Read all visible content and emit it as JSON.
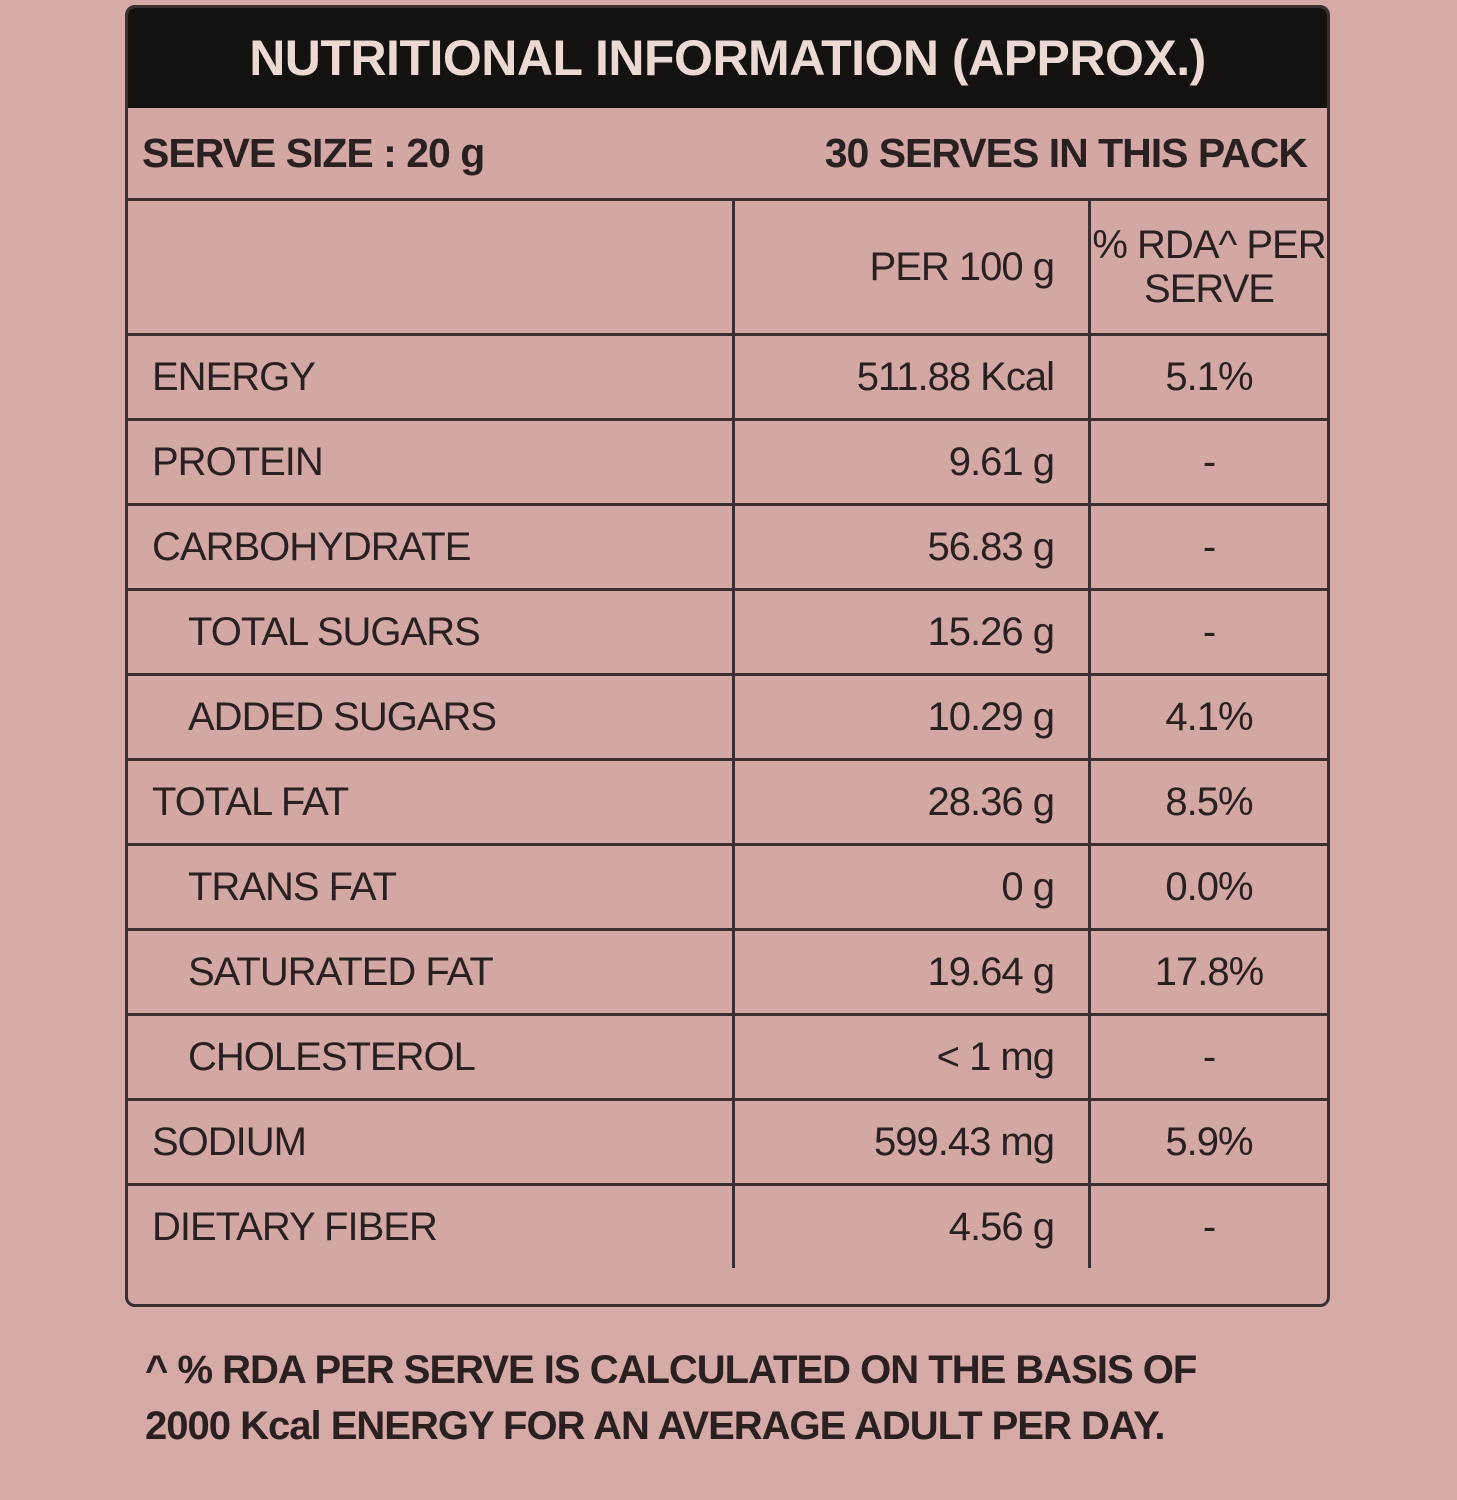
{
  "header": {
    "title": "NUTRITIONAL INFORMATION (APPROX.)",
    "serve_size": "SERVE SIZE : 20 g",
    "serves": "30 SERVES IN THIS PACK"
  },
  "table": {
    "columns": [
      "",
      "PER 100 g",
      "% RDA^ PER SERVE"
    ],
    "rows": [
      {
        "name": "ENERGY",
        "per_100g": "511.88 Kcal",
        "rda": "5.1%",
        "indent": false
      },
      {
        "name": "PROTEIN",
        "per_100g": "9.61 g",
        "rda": "-",
        "indent": false
      },
      {
        "name": "CARBOHYDRATE",
        "per_100g": "56.83 g",
        "rda": "-",
        "indent": false
      },
      {
        "name": "TOTAL SUGARS",
        "per_100g": "15.26 g",
        "rda": "-",
        "indent": true
      },
      {
        "name": "ADDED SUGARS",
        "per_100g": "10.29 g",
        "rda": "4.1%",
        "indent": true
      },
      {
        "name": "TOTAL FAT",
        "per_100g": "28.36 g",
        "rda": "8.5%",
        "indent": false
      },
      {
        "name": "TRANS FAT",
        "per_100g": "0 g",
        "rda": "0.0%",
        "indent": true
      },
      {
        "name": "SATURATED FAT",
        "per_100g": "19.64 g",
        "rda": "17.8%",
        "indent": true
      },
      {
        "name": "CHOLESTEROL",
        "per_100g": "< 1 mg",
        "rda": "-",
        "indent": true
      },
      {
        "name": "SODIUM",
        "per_100g": "599.43 mg",
        "rda": "5.9%",
        "indent": false
      },
      {
        "name": "DIETARY FIBER",
        "per_100g": "4.56 g",
        "rda": "-",
        "indent": false
      }
    ]
  },
  "footnote": [
    "^ % RDA PER SERVE IS CALCULATED ON THE BASIS OF",
    "2000 Kcal ENERGY FOR AN AVERAGE ADULT PER DAY."
  ]
}
